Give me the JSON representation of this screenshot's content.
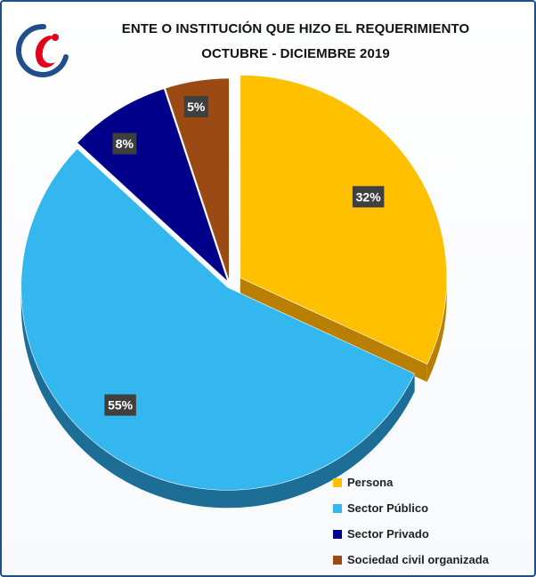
{
  "chart_data": {
    "type": "pie",
    "title": "ENTE O INSTITUCIÓN QUE HIZO EL REQUERIMIENTO",
    "subtitle": "OCTUBRE - DICIEMBRE 2019",
    "categories": [
      "Persona",
      "Sector Público",
      "Sector Privado",
      "Sociedad civil organizada"
    ],
    "values": [
      32,
      55,
      8,
      5
    ],
    "data_labels": [
      "32%",
      "55%",
      "8%",
      "5%"
    ],
    "colors": [
      "#ffc000",
      "#33b7ee",
      "#00008b",
      "#9a4a12"
    ],
    "side_colors": [
      "#b87f00",
      "#1c6e97",
      "#00004d",
      "#5c2a08"
    ],
    "legend_position": "bottom-right",
    "exploded": true,
    "three_d": true
  },
  "logo": {
    "icon": "institution-logo-icon",
    "colors": [
      "#e3001b",
      "#1f4e8c"
    ]
  }
}
